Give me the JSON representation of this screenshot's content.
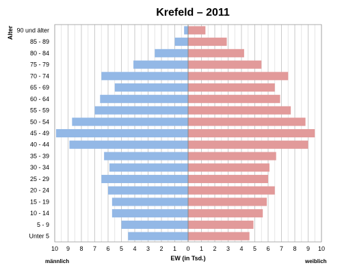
{
  "chart_data": {
    "type": "bar",
    "title": "Krefeld – 2011",
    "ylabel": "Alter",
    "xlabel": "EW (in Tsd.)",
    "left_label": "männlich",
    "right_label": "weiblich",
    "xlim": [
      -10,
      10
    ],
    "x_ticks": [
      "10",
      "9",
      "8",
      "7",
      "6",
      "5",
      "4",
      "3",
      "2",
      "1",
      "0",
      "1",
      "2",
      "3",
      "4",
      "5",
      "6",
      "7",
      "8",
      "9",
      "10"
    ],
    "grid": true,
    "categories": [
      "90 und älter",
      "85 - 89",
      "80 - 84",
      "75 - 79",
      "70 - 74",
      "65 - 69",
      "60 - 64",
      "55 - 59",
      "50 - 54",
      "45 - 49",
      "40 - 44",
      "35 - 39",
      "30 - 34",
      "25 - 29",
      "20 - 24",
      "15 - 19",
      "10 - 14",
      "5 - 9",
      "Unter 5"
    ],
    "series": [
      {
        "name": "männlich",
        "values": [
          0.3,
          1.0,
          2.5,
          4.1,
          6.5,
          5.5,
          6.6,
          7.0,
          8.7,
          9.9,
          8.9,
          6.3,
          5.9,
          6.5,
          6.0,
          5.7,
          5.7,
          5.0,
          4.5
        ],
        "color": "#93b8e6"
      },
      {
        "name": "weiblich",
        "values": [
          1.3,
          2.9,
          4.2,
          5.5,
          7.5,
          6.5,
          6.9,
          7.7,
          8.8,
          9.5,
          9.0,
          6.6,
          6.1,
          6.0,
          6.5,
          5.9,
          5.6,
          4.9,
          4.6
        ],
        "color": "#e29a9a"
      }
    ]
  }
}
